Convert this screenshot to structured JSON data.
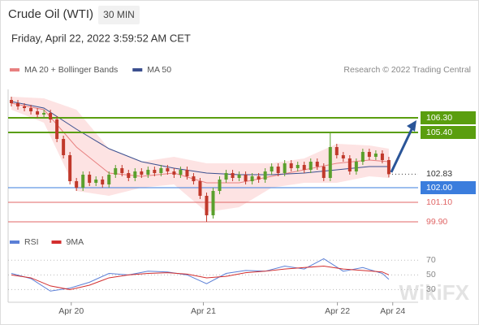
{
  "header": {
    "title": "Crude Oil (WTI)",
    "timeframe": "30 MIN",
    "datetime": "Friday, April 22, 2022 3:59:52 AM CET"
  },
  "watermark": "WikiFX",
  "chart_data": [
    {
      "type": "candlestick",
      "credit": "Research © 2022 Trading Central",
      "up_color": "#5aa02c",
      "down_color": "#c0392b",
      "xlim": [
        -0.5,
        62.5
      ],
      "ylim": [
        99.55,
        107.8
      ],
      "open": [
        107.4,
        107.2,
        107.0,
        106.9,
        106.7,
        106.5,
        106.6,
        106.2,
        105.0,
        104.0,
        102.4,
        102.0,
        102.8,
        102.3,
        102.5,
        102.2,
        102.8,
        103.2,
        102.9,
        102.6,
        103.0,
        102.8,
        103.1,
        102.9,
        103.2,
        103.0,
        102.8,
        103.1,
        102.7,
        102.4,
        101.5,
        100.3,
        101.8,
        102.5,
        102.9,
        102.6,
        102.8,
        102.4,
        102.7,
        102.5,
        103.0,
        103.3,
        102.9,
        103.5,
        103.2,
        103.4,
        103.1,
        103.6,
        103.3,
        102.6,
        104.5,
        104.0,
        103.8,
        103.0,
        103.6,
        104.2,
        103.9,
        104.1,
        103.7
      ],
      "high": [
        107.6,
        107.4,
        107.2,
        107.1,
        106.9,
        106.8,
        106.8,
        106.4,
        105.2,
        104.2,
        102.6,
        103.0,
        103.0,
        102.7,
        102.7,
        103.0,
        103.4,
        103.4,
        103.1,
        103.2,
        103.2,
        103.3,
        103.3,
        103.4,
        103.4,
        103.2,
        103.3,
        103.3,
        102.9,
        102.6,
        101.7,
        102.0,
        102.7,
        103.1,
        103.1,
        103.0,
        103.0,
        102.9,
        102.9,
        103.2,
        103.5,
        103.5,
        103.7,
        103.7,
        103.6,
        103.6,
        103.8,
        103.8,
        103.5,
        105.4,
        104.7,
        104.2,
        104.0,
        103.8,
        104.4,
        104.4,
        104.3,
        104.3,
        103.9
      ],
      "low": [
        107.0,
        106.8,
        106.7,
        106.5,
        106.3,
        106.3,
        106.0,
        104.8,
        103.8,
        102.2,
        101.8,
        101.8,
        102.1,
        102.1,
        102.0,
        102.0,
        102.6,
        102.7,
        102.4,
        102.4,
        102.6,
        102.6,
        102.7,
        102.7,
        102.8,
        102.6,
        102.6,
        102.5,
        102.2,
        101.3,
        99.9,
        100.1,
        101.6,
        102.3,
        102.4,
        102.4,
        102.2,
        102.2,
        102.3,
        102.3,
        102.8,
        102.7,
        102.7,
        103.0,
        103.0,
        102.9,
        102.9,
        103.1,
        102.4,
        102.4,
        103.8,
        103.6,
        102.8,
        102.8,
        103.4,
        103.7,
        103.7,
        103.5,
        102.63
      ],
      "close": [
        107.2,
        107.0,
        106.9,
        106.7,
        106.5,
        106.6,
        106.2,
        105.0,
        104.0,
        102.4,
        102.0,
        102.8,
        102.3,
        102.5,
        102.2,
        102.8,
        103.2,
        102.9,
        102.6,
        103.0,
        102.8,
        103.1,
        102.9,
        103.2,
        103.0,
        102.8,
        103.1,
        102.7,
        102.4,
        101.5,
        100.3,
        101.8,
        102.5,
        102.9,
        102.6,
        102.8,
        102.4,
        102.7,
        102.5,
        103.0,
        103.3,
        102.9,
        103.5,
        103.2,
        103.4,
        103.1,
        103.6,
        103.3,
        102.6,
        104.5,
        104.0,
        103.8,
        103.0,
        103.6,
        104.2,
        103.9,
        104.1,
        103.7,
        102.83
      ],
      "overlay_x": [
        0,
        5,
        10,
        15,
        20,
        25,
        30,
        35,
        40,
        45,
        50,
        55,
        58
      ],
      "overlays": [
        {
          "name": "MA 20 + Bollinger Bands",
          "color": "#e88080",
          "band_color": "#fde3e3",
          "values": [
            107.2,
            106.8,
            104.5,
            102.9,
            102.7,
            102.9,
            102.3,
            102.3,
            102.7,
            103.1,
            103.5,
            103.7,
            103.6
          ],
          "upper": [
            107.6,
            107.5,
            106.8,
            104.4,
            103.6,
            103.9,
            103.5,
            103.5,
            103.5,
            103.8,
            104.7,
            104.6,
            104.4
          ],
          "lower": [
            106.8,
            106.0,
            101.8,
            101.5,
            102.0,
            102.2,
            100.5,
            100.8,
            102.0,
            102.3,
            102.3,
            102.7,
            102.6
          ]
        },
        {
          "name": "MA 50",
          "color": "#3b4f8f",
          "values": [
            107.3,
            106.9,
            105.6,
            104.4,
            103.6,
            103.2,
            102.9,
            102.8,
            102.8,
            102.9,
            103.1,
            103.3,
            103.3
          ]
        }
      ],
      "levels": [
        {
          "value": 106.3,
          "label": "106.30",
          "color": "#5a9e0f",
          "style": "solid",
          "box": true
        },
        {
          "value": 105.4,
          "label": "105.40",
          "color": "#5a9e0f",
          "style": "solid",
          "box": true
        },
        {
          "value": 102.83,
          "label": "102.83",
          "color": "#333333",
          "style": "dotted",
          "box": false
        },
        {
          "value": 102.0,
          "label": "102.00",
          "color": "#3b7ddd",
          "style": "solid",
          "box": true
        },
        {
          "value": 101.1,
          "label": "101.10",
          "color": "#e06666",
          "style": "solid",
          "box": false
        },
        {
          "value": 99.9,
          "label": "99.90",
          "color": "#e06666",
          "style": "solid",
          "box": false
        }
      ]
    },
    {
      "type": "line",
      "x": [
        0,
        3,
        6,
        9,
        12,
        15,
        18,
        21,
        24,
        27,
        30,
        33,
        36,
        39,
        42,
        45,
        48,
        51,
        54,
        57,
        58
      ],
      "xlim": [
        -0.5,
        62.5
      ],
      "ylim": [
        15,
        78
      ],
      "yticks": [
        30,
        50,
        70
      ],
      "grid": true,
      "xticks": [
        {
          "value": 9.2,
          "label": "Apr 20"
        },
        {
          "value": 29.5,
          "label": "Apr 21"
        },
        {
          "value": 50.1,
          "label": "Apr 22"
        },
        {
          "value": 58.6,
          "label": "Apr 24"
        }
      ],
      "series": [
        {
          "name": "RSI",
          "color": "#5b7fd6",
          "values": [
            52,
            45,
            28,
            32,
            40,
            52,
            50,
            55,
            54,
            50,
            38,
            52,
            56,
            55,
            62,
            58,
            72,
            55,
            60,
            52,
            44
          ]
        },
        {
          "name": "9MA",
          "color": "#d32f2f",
          "values": [
            50,
            46,
            35,
            30,
            36,
            46,
            50,
            52,
            53,
            51,
            46,
            48,
            53,
            55,
            58,
            60,
            62,
            58,
            56,
            54,
            50
          ]
        }
      ]
    }
  ]
}
